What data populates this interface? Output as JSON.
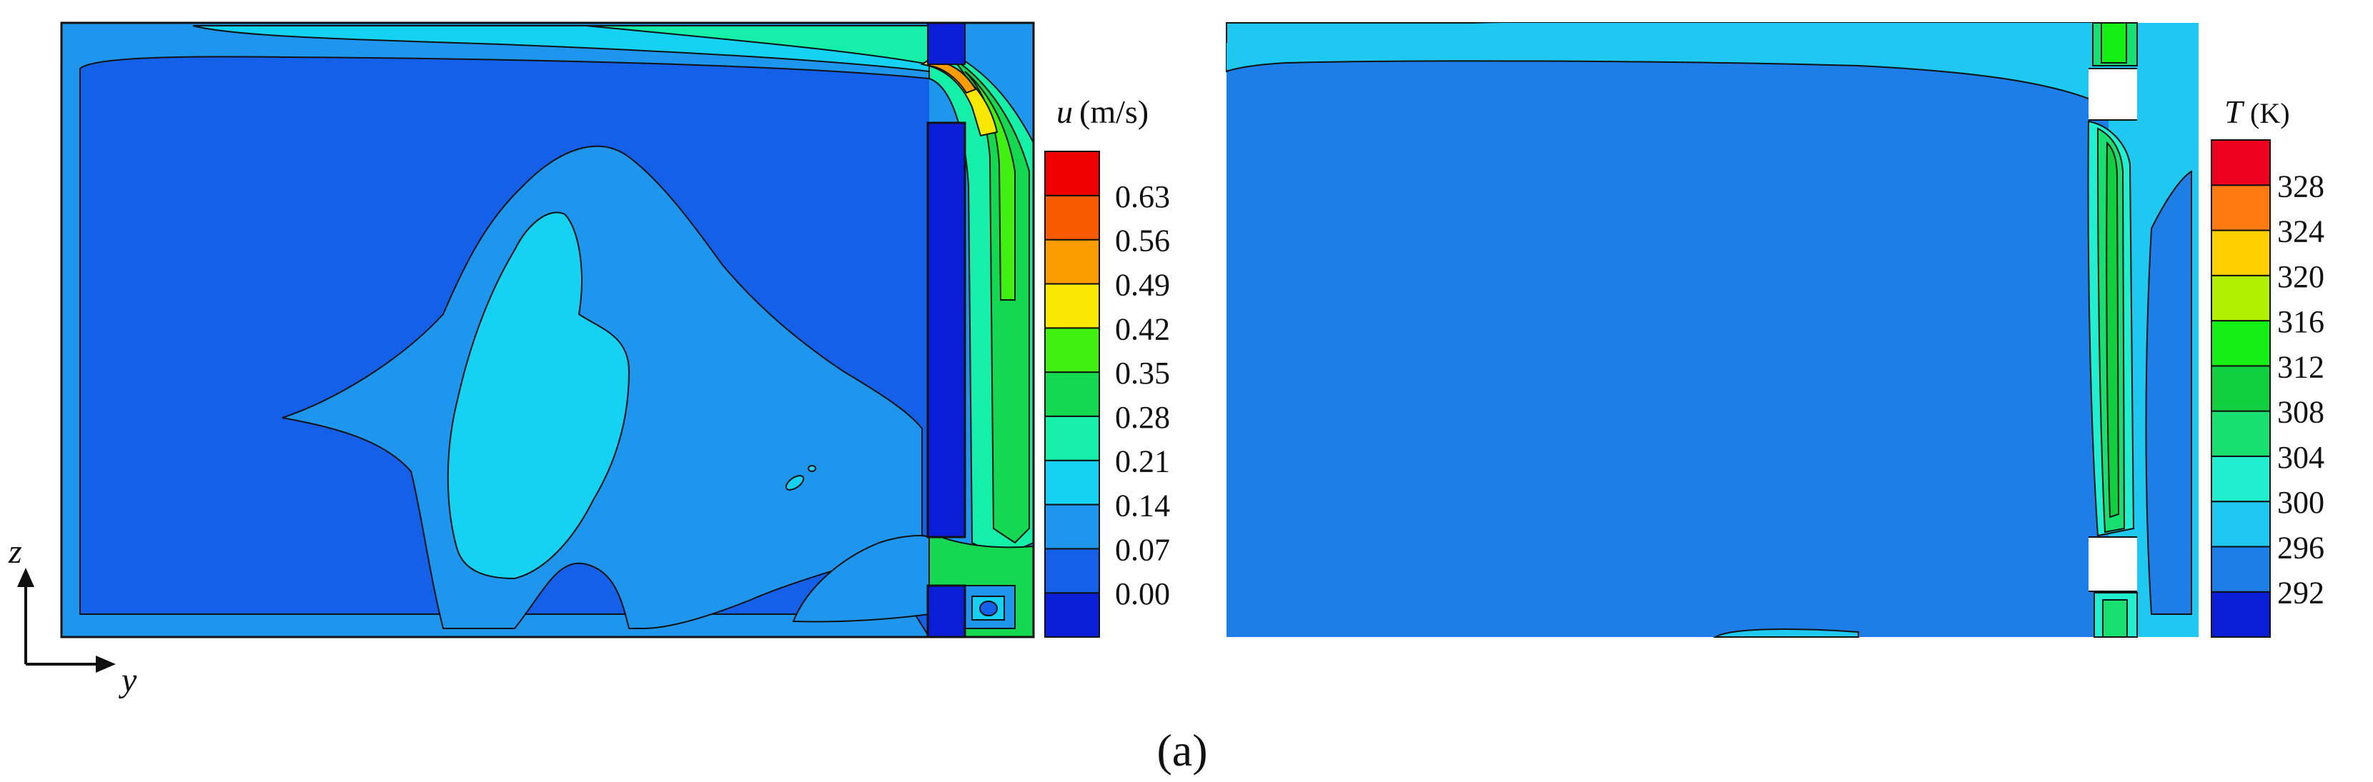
{
  "figure": {
    "panel_label": "(a)"
  },
  "axes": {
    "z_label": "z",
    "y_label": "y"
  },
  "chart_data": [
    {
      "type": "heatmap",
      "field": "velocity magnitude",
      "colorbar_title_symbol": "u",
      "colorbar_title_unit": "(m/s)",
      "colorbar_ticks": [
        "0.63",
        "0.56",
        "0.49",
        "0.42",
        "0.35",
        "0.28",
        "0.21",
        "0.14",
        "0.07",
        "0.00"
      ],
      "colorbar_levels": [
        0.0,
        0.07,
        0.14,
        0.21,
        0.28,
        0.35,
        0.42,
        0.49,
        0.56,
        0.63,
        0.7
      ],
      "colorbar_colors": [
        "#0a1ed8",
        "#1460e8",
        "#1e96ee",
        "#16d2f2",
        "#14f0a8",
        "#14d850",
        "#40f010",
        "#f8e800",
        "#fa9c00",
        "#f85a00",
        "#f00000"
      ]
    },
    {
      "type": "heatmap",
      "field": "temperature",
      "colorbar_title_symbol": "T",
      "colorbar_title_unit": "(K)",
      "colorbar_ticks": [
        "328",
        "324",
        "320",
        "316",
        "312",
        "308",
        "304",
        "300",
        "296",
        "292"
      ],
      "colorbar_levels": [
        292,
        296,
        300,
        304,
        308,
        312,
        316,
        320,
        324,
        328,
        332
      ],
      "colorbar_colors": [
        "#0a1ed8",
        "#1e7ee8",
        "#1ec8f0",
        "#20f0d0",
        "#18e070",
        "#10d040",
        "#14f014",
        "#b0f000",
        "#ffd000",
        "#ff7a10",
        "#f00020"
      ]
    }
  ]
}
